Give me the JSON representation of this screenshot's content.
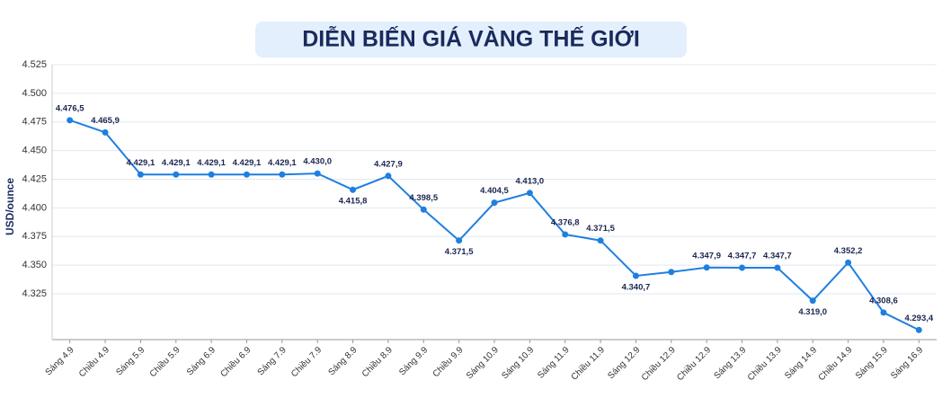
{
  "chart_data": {
    "type": "line",
    "title": "DIỄN BIẾN GIÁ VÀNG THẾ GIỚI",
    "y_label": "USD/ounce",
    "categories": [
      "Sáng 4.9",
      "Chiều 4.9",
      "Sáng 5.9",
      "Chiều 5.9",
      "Sáng 6.9",
      "Chiều 6.9",
      "Sáng 7.9",
      "Chiều 7.9",
      "Sáng 8.9",
      "Chiều 8.9",
      "Sáng 9.9",
      "Chiều 9.9",
      "Sáng 10.9",
      "Sáng 10.9",
      "Sáng 11.9",
      "Chiều 11.9",
      "Sáng 12.9",
      "Chiều 12.9",
      "Chiều 12.9",
      "Sáng 13.9",
      "Chiều 13.9",
      "Sáng 14.9",
      "Chiều 14.9",
      "Sáng 15.9",
      "Sáng 16.9"
    ],
    "series": [
      {
        "name": "USD/ounce",
        "color": "#1f7fe0",
        "values": [
          4476.5,
          4465.9,
          4429.1,
          4429.1,
          4429.1,
          4429.1,
          4429.1,
          4430.0,
          4415.8,
          4427.9,
          4398.5,
          4371.5,
          4404.5,
          4413.0,
          4376.8,
          4371.5,
          4340.7,
          4344,
          4347.9,
          4347.7,
          4347.7,
          4319.0,
          4352.2,
          4308.6,
          4293.4
        ],
        "value_labels": [
          "4.476,5",
          "4.465,9",
          "4.429,1",
          "4.429,1",
          "4.429,1",
          "4.429,1",
          "4.429,1",
          "4.430,0",
          "4.415,8",
          "4.427,9",
          "4.398,5",
          "4.371,5",
          "4.404,5",
          "4.413,0",
          "4.376,8",
          "4.371,5",
          "4.340,7",
          null,
          "4.347,9",
          "4.347,7",
          "4.347,7",
          "4.319,0",
          "4.352,2",
          "4.308,6",
          "4.293,4"
        ]
      }
    ],
    "ylim": [
      4285,
      4525
    ],
    "yticks": [
      {
        "value": 4325,
        "label": "4.325"
      },
      {
        "value": 4350,
        "label": "4.350"
      },
      {
        "value": 4375,
        "label": "4.375"
      },
      {
        "value": 4400,
        "label": "4.400"
      },
      {
        "value": 4425,
        "label": "4.425"
      },
      {
        "value": 4450,
        "label": "4.450"
      },
      {
        "value": 4475,
        "label": "4.475"
      },
      {
        "value": 4500,
        "label": "4.500"
      },
      {
        "value": 4525,
        "label": "4.525"
      }
    ],
    "grid": true
  }
}
